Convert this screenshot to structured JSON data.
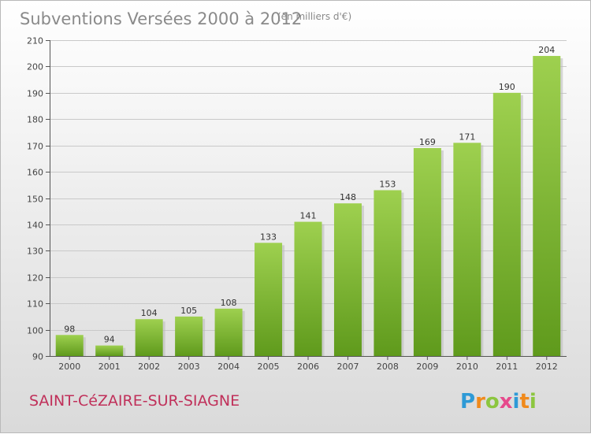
{
  "chart_data": {
    "type": "bar",
    "title": "Subventions Versées 2000 à 2012",
    "unit": "(en milliers d'€)",
    "categories": [
      "2000",
      "2001",
      "2002",
      "2003",
      "2004",
      "2005",
      "2006",
      "2007",
      "2008",
      "2009",
      "2010",
      "2011",
      "2012"
    ],
    "values": [
      98,
      94,
      104,
      105,
      108,
      133,
      141,
      148,
      153,
      169,
      171,
      190,
      204
    ],
    "ylim": [
      90,
      210
    ],
    "yticks": [
      90,
      100,
      110,
      120,
      130,
      140,
      150,
      160,
      170,
      180,
      190,
      200,
      210
    ],
    "xlabel": "",
    "ylabel": "",
    "grid": true,
    "bar_color_top": "#9ed04f",
    "bar_color_bottom": "#5f9a1c"
  },
  "commune": "SAINT-CéZAIRE-SUR-SIAGNE",
  "brand": {
    "letters": [
      "P",
      "r",
      "o",
      "x",
      "i",
      "t",
      "i"
    ],
    "colors": [
      "#2e9ad6",
      "#f08a1c",
      "#8cc63f",
      "#e64a8c",
      "#2e9ad6",
      "#f08a1c",
      "#8cc63f"
    ]
  }
}
